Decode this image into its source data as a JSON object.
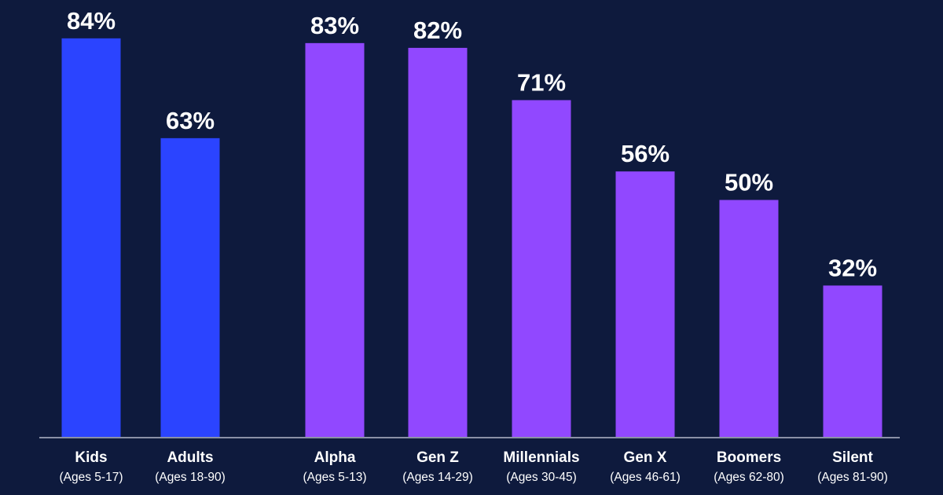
{
  "chart_data": {
    "type": "bar",
    "categories": [
      "Kids",
      "Adults",
      "Alpha",
      "Gen Z",
      "Millennials",
      "Gen X",
      "Boomers",
      "Silent"
    ],
    "category_subtitles": [
      "(Ages 5-17)",
      "(Ages 18-90)",
      "(Ages 5-13)",
      "(Ages 14-29)",
      "(Ages 30-45)",
      "(Ages 46-61)",
      "(Ages 62-80)",
      "(Ages 81-90)"
    ],
    "values": [
      84,
      63,
      83,
      82,
      71,
      56,
      50,
      32
    ],
    "value_labels": [
      "84%",
      "63%",
      "83%",
      "82%",
      "71%",
      "56%",
      "50%",
      "32%"
    ],
    "groups": [
      "age",
      "age",
      "generation",
      "generation",
      "generation",
      "generation",
      "generation",
      "generation"
    ],
    "ylim": [
      0,
      100
    ],
    "grid": false,
    "colors": {
      "background": "#0e1a3d",
      "age": "#2b44ff",
      "generation": "#9148ff",
      "text": "#ffffff",
      "baseline": "#8a90a6"
    }
  }
}
